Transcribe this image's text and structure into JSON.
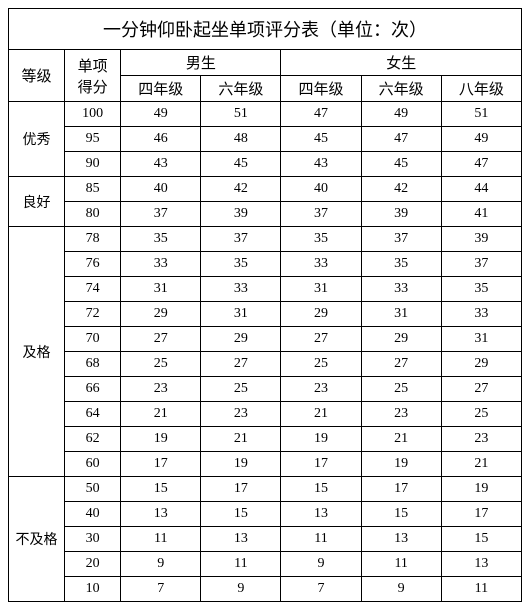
{
  "title": "一分钟仰卧起坐单项评分表（单位：次）",
  "headers": {
    "grade_level": "等级",
    "score": "单项\n得分",
    "boys": "男生",
    "girls": "女生",
    "grade4": "四年级",
    "grade6": "六年级",
    "grade8": "八年级"
  },
  "groups": [
    {
      "label": "优秀",
      "rows": [
        {
          "score": "100",
          "v": [
            "49",
            "51",
            "47",
            "49",
            "51"
          ]
        },
        {
          "score": "95",
          "v": [
            "46",
            "48",
            "45",
            "47",
            "49"
          ]
        },
        {
          "score": "90",
          "v": [
            "43",
            "45",
            "43",
            "45",
            "47"
          ]
        }
      ]
    },
    {
      "label": "良好",
      "rows": [
        {
          "score": "85",
          "v": [
            "40",
            "42",
            "40",
            "42",
            "44"
          ]
        },
        {
          "score": "80",
          "v": [
            "37",
            "39",
            "37",
            "39",
            "41"
          ]
        }
      ]
    },
    {
      "label": "及格",
      "rows": [
        {
          "score": "78",
          "v": [
            "35",
            "37",
            "35",
            "37",
            "39"
          ]
        },
        {
          "score": "76",
          "v": [
            "33",
            "35",
            "33",
            "35",
            "37"
          ]
        },
        {
          "score": "74",
          "v": [
            "31",
            "33",
            "31",
            "33",
            "35"
          ]
        },
        {
          "score": "72",
          "v": [
            "29",
            "31",
            "29",
            "31",
            "33"
          ]
        },
        {
          "score": "70",
          "v": [
            "27",
            "29",
            "27",
            "29",
            "31"
          ]
        },
        {
          "score": "68",
          "v": [
            "25",
            "27",
            "25",
            "27",
            "29"
          ]
        },
        {
          "score": "66",
          "v": [
            "23",
            "25",
            "23",
            "25",
            "27"
          ]
        },
        {
          "score": "64",
          "v": [
            "21",
            "23",
            "21",
            "23",
            "25"
          ]
        },
        {
          "score": "62",
          "v": [
            "19",
            "21",
            "19",
            "21",
            "23"
          ]
        },
        {
          "score": "60",
          "v": [
            "17",
            "19",
            "17",
            "19",
            "21"
          ]
        }
      ]
    },
    {
      "label": "不及格",
      "rows": [
        {
          "score": "50",
          "v": [
            "15",
            "17",
            "15",
            "17",
            "19"
          ]
        },
        {
          "score": "40",
          "v": [
            "13",
            "15",
            "13",
            "15",
            "17"
          ]
        },
        {
          "score": "30",
          "v": [
            "11",
            "13",
            "11",
            "13",
            "15"
          ]
        },
        {
          "score": "20",
          "v": [
            "9",
            "11",
            "9",
            "11",
            "13"
          ]
        },
        {
          "score": "10",
          "v": [
            "7",
            "9",
            "7",
            "9",
            "11"
          ]
        }
      ]
    }
  ],
  "colors": {
    "border": "#000000",
    "background": "#ffffff",
    "text": "#000000"
  }
}
